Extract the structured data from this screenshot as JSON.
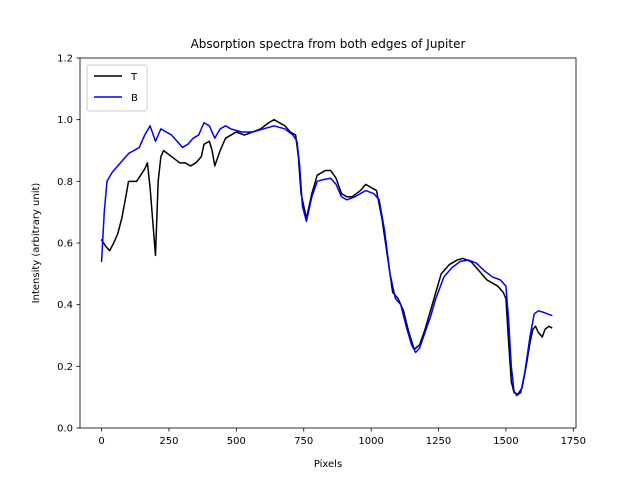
{
  "chart_data": {
    "type": "line",
    "title": "Absorption spectra from both edges of Jupiter",
    "xlabel": "Pixels",
    "ylabel": "Intensity (arbitrary unit)",
    "xlim": [
      -80,
      1760
    ],
    "ylim": [
      0.0,
      1.2
    ],
    "xticks": [
      0,
      250,
      500,
      750,
      1000,
      1250,
      1500,
      1750
    ],
    "yticks": [
      0.0,
      0.2,
      0.4,
      0.6,
      0.8,
      1.0,
      1.2
    ],
    "grid": false,
    "legend_position": "top-left",
    "series": [
      {
        "name": "T",
        "color": "#000000",
        "points": [
          [
            0,
            0.61
          ],
          [
            15,
            0.59
          ],
          [
            30,
            0.575
          ],
          [
            45,
            0.6
          ],
          [
            60,
            0.63
          ],
          [
            75,
            0.68
          ],
          [
            90,
            0.75
          ],
          [
            100,
            0.8
          ],
          [
            115,
            0.8
          ],
          [
            130,
            0.8
          ],
          [
            145,
            0.82
          ],
          [
            160,
            0.84
          ],
          [
            170,
            0.86
          ],
          [
            180,
            0.78
          ],
          [
            190,
            0.67
          ],
          [
            200,
            0.56
          ],
          [
            210,
            0.8
          ],
          [
            220,
            0.88
          ],
          [
            230,
            0.9
          ],
          [
            260,
            0.88
          ],
          [
            290,
            0.86
          ],
          [
            310,
            0.86
          ],
          [
            330,
            0.85
          ],
          [
            350,
            0.86
          ],
          [
            370,
            0.88
          ],
          [
            380,
            0.92
          ],
          [
            400,
            0.93
          ],
          [
            410,
            0.9
          ],
          [
            420,
            0.85
          ],
          [
            440,
            0.9
          ],
          [
            460,
            0.94
          ],
          [
            480,
            0.95
          ],
          [
            500,
            0.96
          ],
          [
            530,
            0.95
          ],
          [
            560,
            0.96
          ],
          [
            590,
            0.97
          ],
          [
            620,
            0.99
          ],
          [
            640,
            1.0
          ],
          [
            660,
            0.99
          ],
          [
            680,
            0.98
          ],
          [
            700,
            0.96
          ],
          [
            720,
            0.95
          ],
          [
            730,
            0.88
          ],
          [
            740,
            0.76
          ],
          [
            760,
            0.68
          ],
          [
            780,
            0.76
          ],
          [
            800,
            0.82
          ],
          [
            830,
            0.835
          ],
          [
            850,
            0.835
          ],
          [
            870,
            0.81
          ],
          [
            890,
            0.76
          ],
          [
            910,
            0.75
          ],
          [
            930,
            0.75
          ],
          [
            960,
            0.77
          ],
          [
            980,
            0.79
          ],
          [
            1000,
            0.78
          ],
          [
            1020,
            0.77
          ],
          [
            1040,
            0.68
          ],
          [
            1060,
            0.56
          ],
          [
            1080,
            0.44
          ],
          [
            1100,
            0.42
          ],
          [
            1120,
            0.38
          ],
          [
            1140,
            0.31
          ],
          [
            1160,
            0.255
          ],
          [
            1180,
            0.27
          ],
          [
            1200,
            0.32
          ],
          [
            1220,
            0.38
          ],
          [
            1240,
            0.44
          ],
          [
            1260,
            0.5
          ],
          [
            1290,
            0.53
          ],
          [
            1320,
            0.545
          ],
          [
            1340,
            0.55
          ],
          [
            1370,
            0.54
          ],
          [
            1390,
            0.52
          ],
          [
            1410,
            0.5
          ],
          [
            1430,
            0.48
          ],
          [
            1450,
            0.47
          ],
          [
            1470,
            0.46
          ],
          [
            1490,
            0.44
          ],
          [
            1500,
            0.42
          ],
          [
            1510,
            0.28
          ],
          [
            1520,
            0.15
          ],
          [
            1530,
            0.115
          ],
          [
            1545,
            0.11
          ],
          [
            1560,
            0.13
          ],
          [
            1575,
            0.2
          ],
          [
            1590,
            0.28
          ],
          [
            1600,
            0.32
          ],
          [
            1610,
            0.33
          ],
          [
            1620,
            0.31
          ],
          [
            1635,
            0.295
          ],
          [
            1645,
            0.32
          ],
          [
            1660,
            0.33
          ],
          [
            1670,
            0.325
          ]
        ]
      },
      {
        "name": "B",
        "color": "#0000ff",
        "points": [
          [
            0,
            0.54
          ],
          [
            10,
            0.7
          ],
          [
            20,
            0.8
          ],
          [
            40,
            0.83
          ],
          [
            70,
            0.86
          ],
          [
            100,
            0.89
          ],
          [
            120,
            0.9
          ],
          [
            140,
            0.91
          ],
          [
            160,
            0.95
          ],
          [
            180,
            0.98
          ],
          [
            200,
            0.93
          ],
          [
            220,
            0.97
          ],
          [
            240,
            0.96
          ],
          [
            260,
            0.95
          ],
          [
            280,
            0.93
          ],
          [
            300,
            0.91
          ],
          [
            320,
            0.92
          ],
          [
            340,
            0.94
          ],
          [
            360,
            0.95
          ],
          [
            380,
            0.99
          ],
          [
            400,
            0.98
          ],
          [
            420,
            0.94
          ],
          [
            440,
            0.97
          ],
          [
            460,
            0.98
          ],
          [
            480,
            0.97
          ],
          [
            520,
            0.96
          ],
          [
            560,
            0.96
          ],
          [
            600,
            0.97
          ],
          [
            640,
            0.98
          ],
          [
            680,
            0.97
          ],
          [
            710,
            0.95
          ],
          [
            725,
            0.93
          ],
          [
            735,
            0.85
          ],
          [
            745,
            0.72
          ],
          [
            760,
            0.67
          ],
          [
            780,
            0.75
          ],
          [
            800,
            0.8
          ],
          [
            820,
            0.805
          ],
          [
            850,
            0.81
          ],
          [
            870,
            0.79
          ],
          [
            890,
            0.75
          ],
          [
            910,
            0.74
          ],
          [
            940,
            0.75
          ],
          [
            980,
            0.77
          ],
          [
            1010,
            0.76
          ],
          [
            1030,
            0.74
          ],
          [
            1050,
            0.64
          ],
          [
            1070,
            0.5
          ],
          [
            1090,
            0.42
          ],
          [
            1110,
            0.4
          ],
          [
            1130,
            0.33
          ],
          [
            1150,
            0.27
          ],
          [
            1165,
            0.245
          ],
          [
            1180,
            0.26
          ],
          [
            1200,
            0.31
          ],
          [
            1220,
            0.36
          ],
          [
            1240,
            0.42
          ],
          [
            1270,
            0.49
          ],
          [
            1300,
            0.52
          ],
          [
            1330,
            0.54
          ],
          [
            1360,
            0.545
          ],
          [
            1390,
            0.535
          ],
          [
            1420,
            0.51
          ],
          [
            1450,
            0.49
          ],
          [
            1480,
            0.48
          ],
          [
            1500,
            0.46
          ],
          [
            1510,
            0.35
          ],
          [
            1520,
            0.2
          ],
          [
            1530,
            0.12
          ],
          [
            1540,
            0.105
          ],
          [
            1555,
            0.115
          ],
          [
            1570,
            0.18
          ],
          [
            1590,
            0.3
          ],
          [
            1605,
            0.37
          ],
          [
            1620,
            0.38
          ],
          [
            1640,
            0.375
          ],
          [
            1655,
            0.37
          ],
          [
            1670,
            0.365
          ]
        ]
      }
    ]
  }
}
